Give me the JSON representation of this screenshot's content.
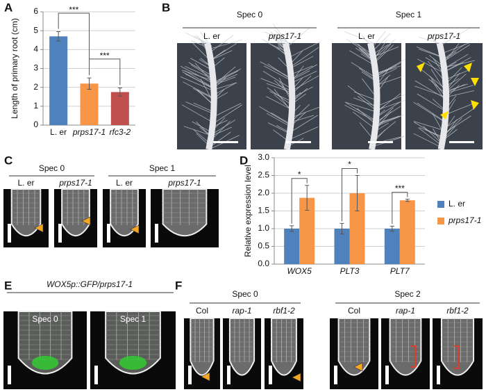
{
  "panel_labels": [
    "A",
    "B",
    "C",
    "D",
    "E",
    "F"
  ],
  "chart_data": [
    {
      "type": "bar",
      "ylabel": "Length of primary root (cm)",
      "categories": [
        "L. er",
        "prps17-1",
        "rfc3-2"
      ],
      "values": [
        4.7,
        2.2,
        1.75
      ],
      "errors": [
        0.25,
        0.3,
        0.22
      ],
      "colors": [
        "#4f81bd",
        "#f79646",
        "#c0504d"
      ],
      "ylim": [
        0,
        6
      ],
      "yticks": [
        0,
        1,
        2,
        3,
        4,
        5,
        6
      ],
      "grid": true,
      "annotations": [
        "***",
        "***"
      ]
    },
    {
      "type": "bar",
      "ylabel": "Relative expression level",
      "categories": [
        "WOX5",
        "PLT3",
        "PLT7"
      ],
      "series": [
        {
          "name": "L. er",
          "color": "#4f81bd",
          "values": [
            1.0,
            1.0,
            1.0
          ],
          "errors": [
            0.08,
            0.15,
            0.07
          ]
        },
        {
          "name": "prps17-1",
          "color": "#f79646",
          "values": [
            1.87,
            2.0,
            1.8
          ],
          "errors": [
            0.35,
            0.5,
            0.03
          ]
        }
      ],
      "ylim": [
        0,
        3.0
      ],
      "yticks": [
        {
          "value": 0,
          "label": "0.0"
        },
        0.5,
        {
          "value": 1,
          "label": "1.0"
        },
        1.5,
        {
          "value": 2,
          "label": "2.0"
        },
        2.5,
        {
          "value": 3,
          "label": "3.0"
        }
      ],
      "grid": true,
      "legend": "right",
      "annotations": [
        "*",
        "*",
        "***"
      ]
    }
  ],
  "panel_b": {
    "groups": [
      {
        "title": "Spec 0",
        "columns": [
          "L. er",
          "prps17-1"
        ]
      },
      {
        "title": "Spec 1",
        "columns": [
          "L. er",
          "prps17-1"
        ]
      }
    ]
  },
  "panel_c": {
    "groups": [
      {
        "title": "Spec 0",
        "columns": [
          "L. er",
          "prps17-1"
        ]
      },
      {
        "title": "Spec 1",
        "columns": [
          "L. er",
          "prps17-1"
        ]
      }
    ]
  },
  "panel_e": {
    "title": "WOX5p::GFP/prps17-1",
    "columns": [
      "Spec 0",
      "Spec 1"
    ]
  },
  "panel_f": {
    "groups": [
      {
        "title": "Spec 0",
        "columns": [
          "Col",
          "rap-1",
          "rbf1-2"
        ]
      },
      {
        "title": "Spec 2",
        "columns": [
          "Col",
          "rap-1",
          "rbf1-2"
        ]
      }
    ]
  }
}
